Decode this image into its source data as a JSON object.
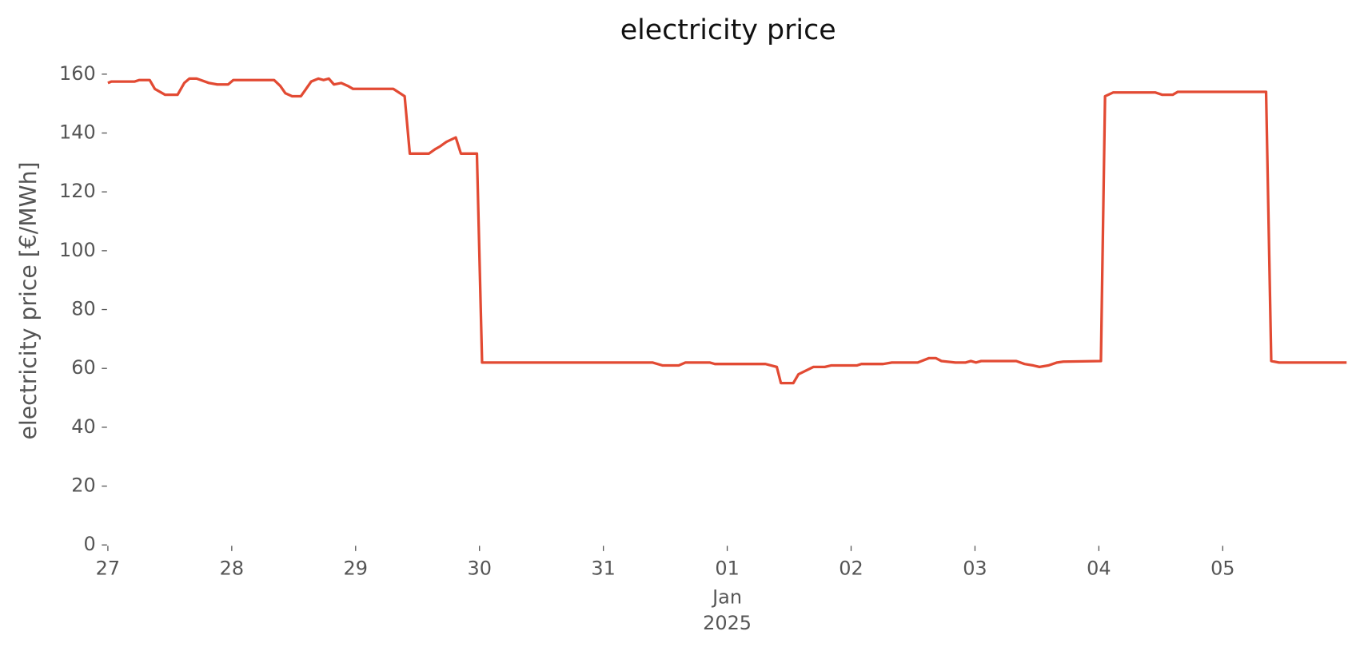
{
  "chart_data": {
    "type": "line",
    "title": "electricity price",
    "ylabel": "electricity price [€/MWh]",
    "x_sublabels": [
      "Jan",
      "2025"
    ],
    "xlim": [
      0,
      240
    ],
    "xticks": [
      {
        "value": 0,
        "label": "27"
      },
      {
        "value": 24,
        "label": "28"
      },
      {
        "value": 48,
        "label": "29"
      },
      {
        "value": 72,
        "label": "30"
      },
      {
        "value": 96,
        "label": "31"
      },
      {
        "value": 120,
        "label": "01"
      },
      {
        "value": 144,
        "label": "02"
      },
      {
        "value": 168,
        "label": "03"
      },
      {
        "value": 192,
        "label": "04"
      },
      {
        "value": 216,
        "label": "05"
      }
    ],
    "ylim": [
      0,
      166
    ],
    "yticks": [
      0,
      20,
      40,
      60,
      80,
      100,
      120,
      140,
      160
    ],
    "series": [
      {
        "name": "electricity price",
        "color": "#e24a33",
        "x": [
          0,
          0.7,
          5.2,
          6.1,
          8.1,
          9.1,
          11.1,
          13.5,
          14.8,
          15.8,
          17.2,
          19.6,
          21.2,
          23.3,
          24.3,
          32.2,
          33.4,
          34.4,
          35.7,
          37.4,
          39.4,
          40.8,
          41.8,
          42.8,
          43.8,
          45.2,
          46.5,
          47.5,
          55.3,
          57.5,
          58.5,
          62.2,
          63.4,
          64.4,
          65.6,
          67.4,
          68.4,
          71.5,
          72.5,
          105.5,
          107.5,
          110.6,
          111.9,
          116.6,
          117.6,
          127.4,
          129.6,
          130.4,
          132.8,
          133.8,
          136.7,
          138.9,
          140.1,
          145.1,
          146.0,
          150.2,
          151.9,
          156.9,
          159.1,
          160.4,
          161.5,
          164.2,
          166.2,
          167.2,
          168.2,
          169.2,
          176.0,
          177.6,
          179.3,
          180.5,
          182.2,
          183.9,
          185.1,
          192.4,
          193.2,
          194.8,
          202.9,
          204.3,
          206.3,
          207.3,
          224.4,
          225.4,
          226.9,
          240
        ],
        "values": [
          157,
          157.5,
          157.5,
          158,
          158,
          155,
          153,
          153,
          157,
          158.5,
          158.5,
          157,
          156.5,
          156.5,
          158,
          158,
          156,
          153.5,
          152.5,
          152.5,
          157.5,
          158.5,
          158,
          158.5,
          156.5,
          157,
          156,
          155,
          155,
          152.5,
          133,
          133,
          134.5,
          135.5,
          137,
          138.5,
          133,
          133,
          62,
          62,
          61,
          61,
          62,
          62,
          61.5,
          61.5,
          60.5,
          55,
          55,
          58,
          60.5,
          60.5,
          61,
          61,
          61.5,
          61.5,
          62,
          62,
          63.5,
          63.5,
          62.5,
          62,
          62,
          62.5,
          62,
          62.5,
          62.5,
          61.5,
          61,
          60.5,
          61,
          62,
          62.3,
          62.5,
          152.5,
          153.8,
          153.8,
          153,
          153,
          154,
          154,
          62.5,
          62,
          62
        ]
      }
    ]
  }
}
